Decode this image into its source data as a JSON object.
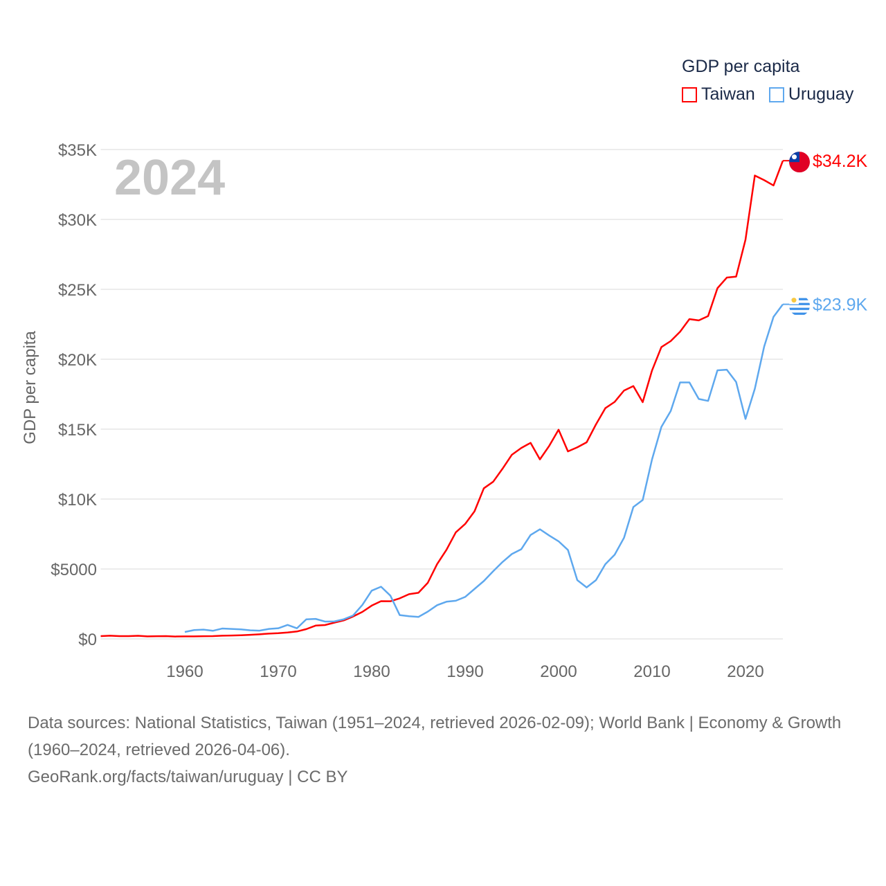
{
  "legend": {
    "title": "GDP per capita"
  },
  "footer": {
    "sources": "Data sources: National Statistics, Taiwan (1951–2024, retrieved 2026-02-09); World Bank | Economy & Growth (1960–2024, retrieved 2026-04-06).",
    "credit": "GeoRank.org/facts/taiwan/uruguay | CC BY"
  },
  "chart_data": {
    "type": "line",
    "title": "GDP per capita",
    "year_overlay": "2024",
    "xlabel": "",
    "ylabel": "GDP per capita",
    "xlim": [
      1951,
      2024
    ],
    "ylim": [
      0,
      35000
    ],
    "grid": true,
    "legend_position": "top-right",
    "x_ticks": [
      1960,
      1970,
      1980,
      1990,
      2000,
      2010,
      2020
    ],
    "x_tick_labels": [
      "1960",
      "1970",
      "1980",
      "1990",
      "2000",
      "2010",
      "2020"
    ],
    "y_ticks": [
      0,
      5000,
      10000,
      15000,
      20000,
      25000,
      30000,
      35000
    ],
    "y_tick_labels": [
      "$0",
      "$5000",
      "$10K",
      "$15K",
      "$20K",
      "$25K",
      "$30K",
      "$35K"
    ],
    "series": [
      {
        "name": "Taiwan",
        "color": "#ff0000",
        "flag": "taiwan-flag",
        "end_label": "$34.2K",
        "start_year": 1951,
        "values": [
          200,
          230,
          200,
          200,
          220,
          180,
          190,
          200,
          170,
          180,
          180,
          190,
          200,
          230,
          240,
          260,
          290,
          330,
          380,
          410,
          460,
          530,
          700,
          950,
          990,
          1160,
          1320,
          1600,
          1930,
          2380,
          2700,
          2690,
          2900,
          3200,
          3300,
          4010,
          5350,
          6370,
          7620,
          8220,
          9120,
          10770,
          11240,
          12170,
          13170,
          13650,
          14020,
          12840,
          13810,
          14960,
          13410,
          13700,
          14060,
          15340,
          16500,
          16950,
          17760,
          18080,
          16930,
          19200,
          20870,
          21300,
          21970,
          22870,
          22780,
          23090,
          25080,
          25840,
          25910,
          28550,
          33140,
          32810,
          32430,
          34200
        ]
      },
      {
        "name": "Uruguay",
        "color": "#5ea8ee",
        "flag": "uruguay-flag",
        "end_label": "$23.9K",
        "start_year": 1960,
        "values": [
          495,
          630,
          660,
          580,
          740,
          710,
          680,
          610,
          590,
          710,
          760,
          1000,
          760,
          1400,
          1430,
          1240,
          1250,
          1400,
          1670,
          2430,
          3450,
          3730,
          3090,
          1700,
          1620,
          1570,
          1950,
          2410,
          2660,
          2730,
          3000,
          3570,
          4140,
          4840,
          5500,
          6070,
          6410,
          7430,
          7840,
          7390,
          6980,
          6360,
          4200,
          3680,
          4200,
          5340,
          6020,
          7230,
          9430,
          9930,
          12840,
          15160,
          16300,
          18340,
          18340,
          17160,
          17020,
          19210,
          19250,
          18370,
          15730,
          17890,
          20910,
          23030,
          23930
        ]
      }
    ]
  }
}
